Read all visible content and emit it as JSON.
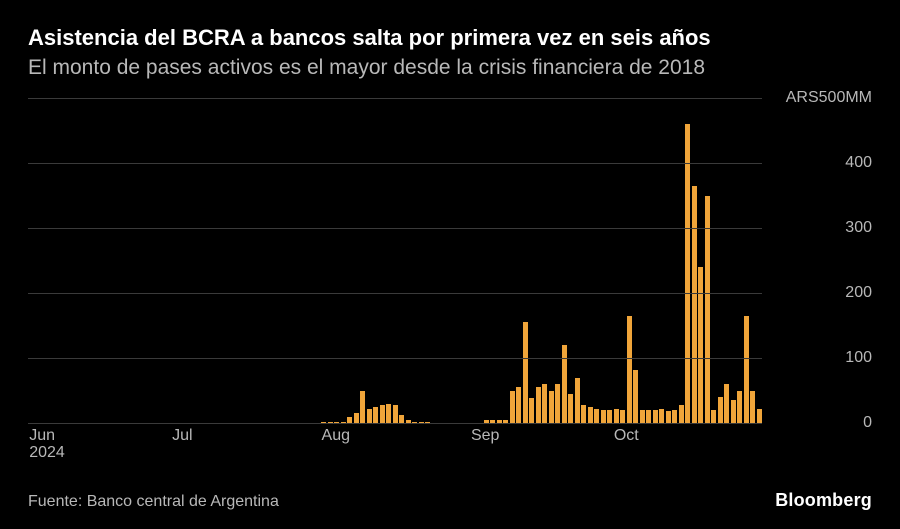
{
  "colors": {
    "background": "#000000",
    "title": "#ffffff",
    "subtitle": "#b8b8b8",
    "axis_label": "#b8b8b8",
    "gridline": "#3a3a3a",
    "bar": "#f0a53a",
    "source": "#b8b8b8",
    "brand": "#ffffff"
  },
  "header": {
    "title": "Asistencia del BCRA a bancos salta por primera vez en seis años",
    "subtitle": "El monto de pases activos es el mayor desde la crisis financiera de 2018"
  },
  "chart": {
    "type": "bar",
    "y": {
      "min": 0,
      "max": 500,
      "ticks": [
        {
          "value": 500,
          "label": "ARS500MM"
        },
        {
          "value": 400,
          "label": "400"
        },
        {
          "value": 300,
          "label": "300"
        },
        {
          "value": 200,
          "label": "200"
        },
        {
          "value": 100,
          "label": "100"
        },
        {
          "value": 0,
          "label": "0"
        }
      ]
    },
    "x": {
      "labels": [
        {
          "index": 0,
          "label": "Jun",
          "sublabel": "2024"
        },
        {
          "index": 22,
          "label": "Jul",
          "sublabel": ""
        },
        {
          "index": 45,
          "label": "Aug",
          "sublabel": ""
        },
        {
          "index": 68,
          "label": "Sep",
          "sublabel": ""
        },
        {
          "index": 90,
          "label": "Oct",
          "sublabel": ""
        }
      ],
      "count": 113
    },
    "values": [
      0,
      0,
      0,
      0,
      0,
      0,
      0,
      0,
      0,
      0,
      0,
      0,
      0,
      0,
      0,
      0,
      0,
      0,
      0,
      0,
      0,
      0,
      0,
      0,
      0,
      0,
      0,
      0,
      0,
      0,
      0,
      0,
      0,
      0,
      0,
      0,
      0,
      0,
      0,
      0,
      0,
      0,
      0,
      0,
      0,
      2,
      2,
      2,
      2,
      10,
      15,
      50,
      22,
      25,
      28,
      30,
      28,
      12,
      4,
      2,
      2,
      2,
      0,
      0,
      0,
      0,
      0,
      0,
      0,
      0,
      4,
      4,
      4,
      4,
      50,
      55,
      155,
      38,
      55,
      60,
      50,
      60,
      120,
      45,
      70,
      28,
      25,
      22,
      20,
      20,
      22,
      20,
      165,
      82,
      20,
      20,
      20,
      22,
      18,
      20,
      28,
      460,
      365,
      240,
      350,
      20,
      40,
      60,
      35,
      50,
      165,
      50,
      22
    ]
  },
  "footer": {
    "source": "Fuente: Banco central de Argentina",
    "brand": "Bloomberg"
  }
}
